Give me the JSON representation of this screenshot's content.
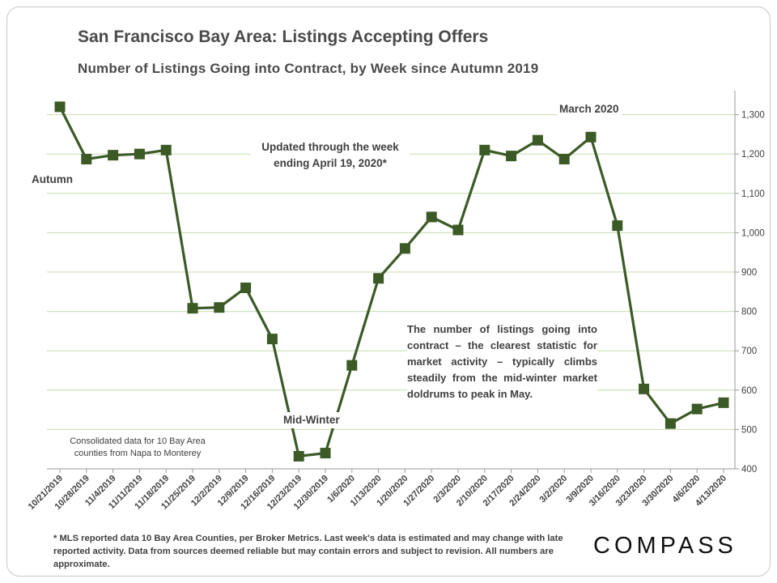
{
  "header": {
    "title": "San Francisco Bay Area: Listings Accepting Offers",
    "subtitle": "Number of Listings Going into Contract, by Week since Autumn 2019"
  },
  "annotations": {
    "autumn": "Autumn",
    "mid_winter": "Mid-Winter",
    "march": "March 2020",
    "updated": "Updated through the week ending April 19, 2020*",
    "description": "The number of listings going into contract – the clearest statistic for market activity – typically climbs steadily from the mid-winter market doldrums to peak in May.",
    "source_note": "Consolidated data for 10 Bay Area counties from Napa to Monterey"
  },
  "footnote": "* MLS reported data 10 Bay Area Counties, per Broker Metrics. Last week's data is estimated and may change with late reported activity. Data from sources deemed reliable but may contain errors and subject to revision. All numbers are approximate.",
  "brand": {
    "logo_text": "COMPASS"
  },
  "colors": {
    "line": "#3b5a26",
    "marker": "#3b5a26",
    "grid": "#c5dcb0",
    "axis_text": "#404040"
  },
  "chart_data": {
    "type": "line",
    "title": "San Francisco Bay Area: Listings Accepting Offers",
    "subtitle": "Number of Listings Going into Contract, by Week since Autumn 2019",
    "categories": [
      "10/21/2019",
      "10/28/2019",
      "11/4/2019",
      "11/11/2019",
      "11/18/2019",
      "11/25/2019",
      "12/2/2019",
      "12/9/2019",
      "12/16/2019",
      "12/23/2019",
      "12/30/2019",
      "1/6/2020",
      "1/13/2020",
      "1/20/2020",
      "1/27/2020",
      "2/3/2020",
      "2/10/2020",
      "2/17/2020",
      "2/24/2020",
      "3/2/2020",
      "3/9/2020",
      "3/16/2020",
      "3/23/2020",
      "3/30/2020",
      "4/6/2020",
      "4/13/2020"
    ],
    "series": [
      {
        "values": [
          1320,
          1187,
          1197,
          1200,
          1210,
          808,
          810,
          860,
          730,
          432,
          440,
          663,
          884,
          960,
          1040,
          1007,
          1210,
          1195,
          1235,
          1187,
          1243,
          1018,
          603,
          515,
          552,
          568
        ]
      }
    ],
    "yticks": [
      400,
      500,
      600,
      700,
      800,
      900,
      1000,
      1100,
      1200,
      1300
    ],
    "ylim": [
      400,
      1350
    ],
    "y_axis_position": "right",
    "grid": true,
    "legend": "none"
  }
}
